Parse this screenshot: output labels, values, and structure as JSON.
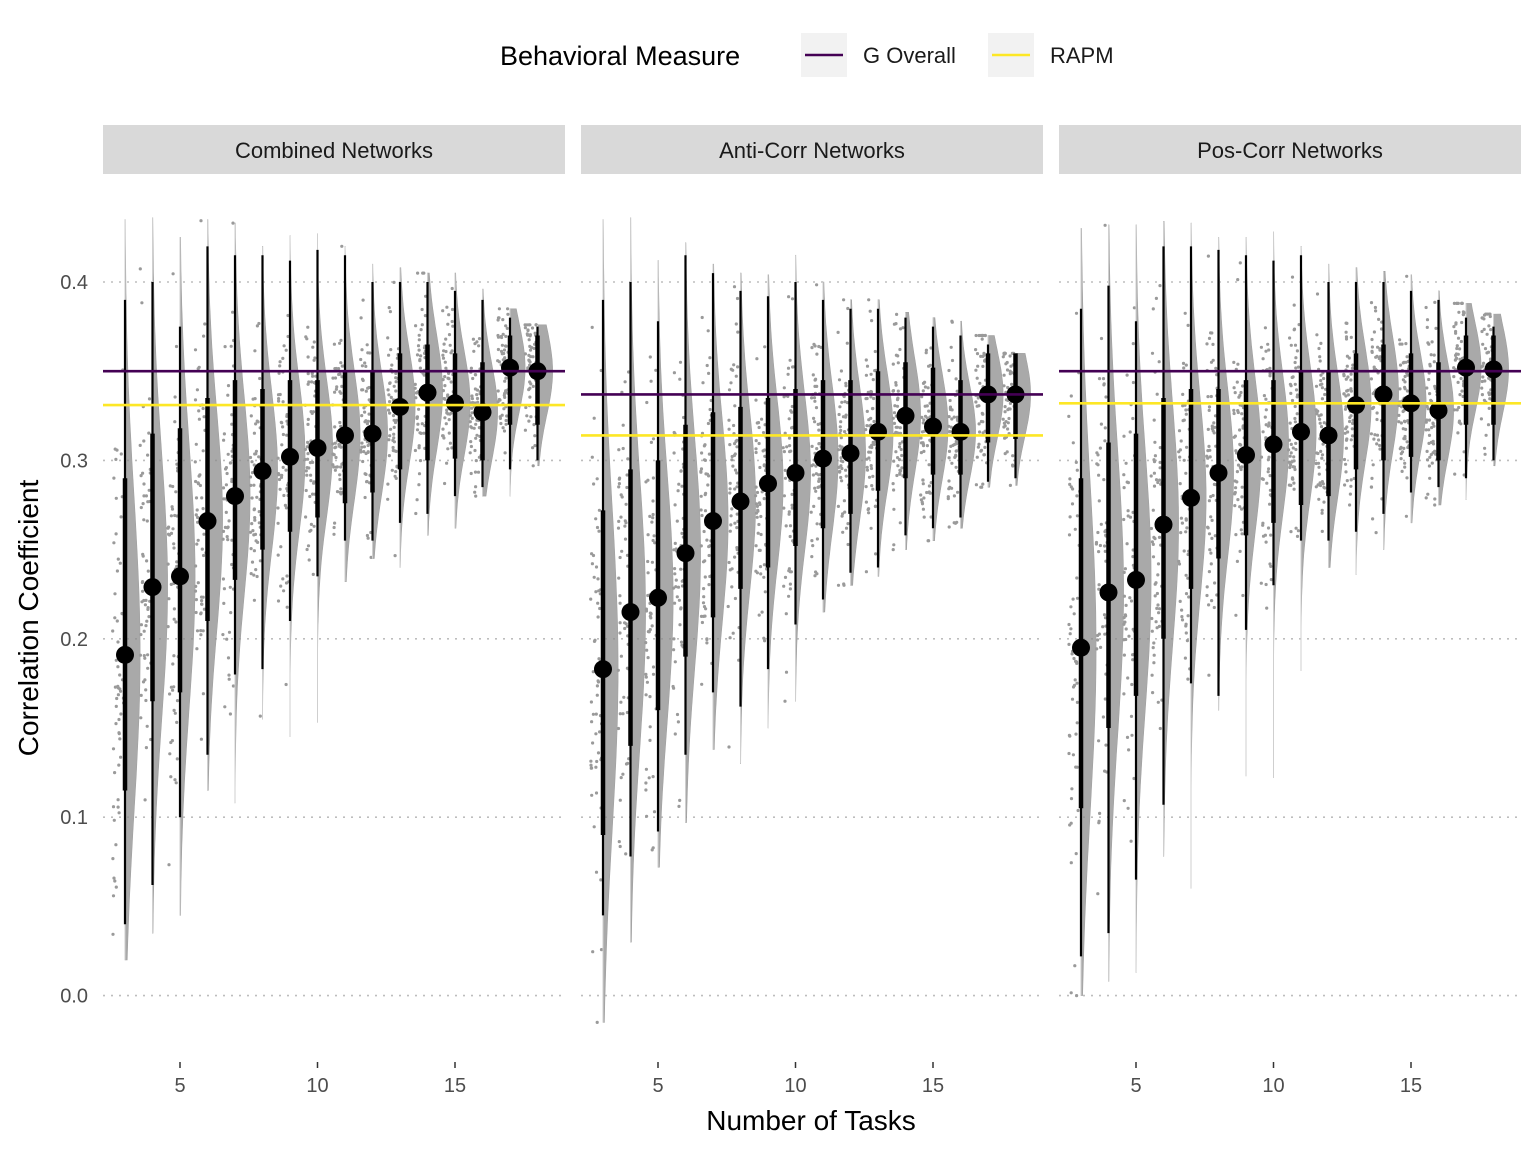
{
  "chart_data": {
    "type": "raincloud",
    "xlabel": "Number of Tasks",
    "ylabel": "Correlation Coefficient",
    "ylim": [
      -0.03,
      0.45
    ],
    "y_ticks": [
      0.0,
      0.1,
      0.2,
      0.3,
      0.4
    ],
    "y_tick_labels": [
      "0.0",
      "0.1",
      "0.2",
      "0.3",
      "0.4"
    ],
    "x_ticks": [
      5,
      10,
      15
    ],
    "x_tick_labels": [
      "5",
      "10",
      "15"
    ],
    "xlim": [
      2.2,
      19.0
    ],
    "grid": "horizontal-dotted",
    "legend": {
      "title": "Behavioral Measure",
      "position": "top",
      "items": [
        {
          "label": "G Overall",
          "color": "#440154"
        },
        {
          "label": "RAPM",
          "color": "#FDE725"
        }
      ]
    },
    "panels": [
      {
        "title": "Combined Networks",
        "reference_lines": {
          "G Overall": 0.35,
          "RAPM": 0.331
        },
        "x": [
          3,
          4,
          5,
          6,
          7,
          8,
          9,
          10,
          11,
          12,
          13,
          14,
          15,
          16,
          17,
          18
        ],
        "median": [
          0.191,
          0.229,
          0.235,
          0.266,
          0.28,
          0.294,
          0.302,
          0.307,
          0.314,
          0.315,
          0.33,
          0.338,
          0.332,
          0.327,
          0.352,
          0.35
        ],
        "range": [
          [
            0.02,
            0.435
          ],
          [
            0.035,
            0.436
          ],
          [
            0.045,
            0.425
          ],
          [
            0.115,
            0.435
          ],
          [
            0.108,
            0.433
          ],
          [
            0.155,
            0.42
          ],
          [
            0.145,
            0.426
          ],
          [
            0.153,
            0.427
          ],
          [
            0.232,
            0.42
          ],
          [
            0.245,
            0.41
          ],
          [
            0.24,
            0.408
          ],
          [
            0.258,
            0.405
          ],
          [
            0.262,
            0.405
          ],
          [
            0.28,
            0.396
          ],
          [
            0.28,
            0.385
          ],
          [
            0.297,
            0.376
          ]
        ],
        "interval_95": [
          [
            0.04,
            0.39
          ],
          [
            0.062,
            0.4
          ],
          [
            0.1,
            0.375
          ],
          [
            0.135,
            0.42
          ],
          [
            0.18,
            0.415
          ],
          [
            0.183,
            0.415
          ],
          [
            0.21,
            0.412
          ],
          [
            0.235,
            0.418
          ],
          [
            0.255,
            0.415
          ],
          [
            0.255,
            0.4
          ],
          [
            0.265,
            0.4
          ],
          [
            0.27,
            0.4
          ],
          [
            0.28,
            0.395
          ],
          [
            0.285,
            0.39
          ],
          [
            0.295,
            0.38
          ],
          [
            0.3,
            0.375
          ]
        ],
        "interval_66": [
          [
            0.115,
            0.29
          ],
          [
            0.165,
            0.315
          ],
          [
            0.17,
            0.318
          ],
          [
            0.21,
            0.335
          ],
          [
            0.233,
            0.345
          ],
          [
            0.25,
            0.34
          ],
          [
            0.26,
            0.345
          ],
          [
            0.268,
            0.345
          ],
          [
            0.276,
            0.35
          ],
          [
            0.282,
            0.35
          ],
          [
            0.295,
            0.36
          ],
          [
            0.3,
            0.365
          ],
          [
            0.301,
            0.36
          ],
          [
            0.3,
            0.355
          ],
          [
            0.32,
            0.37
          ],
          [
            0.32,
            0.37
          ]
        ]
      },
      {
        "title": "Anti-Corr Networks",
        "reference_lines": {
          "G Overall": 0.337,
          "RAPM": 0.314
        },
        "x": [
          3,
          4,
          5,
          6,
          7,
          8,
          9,
          10,
          11,
          12,
          13,
          14,
          15,
          16,
          17,
          18
        ],
        "median": [
          0.183,
          0.215,
          0.223,
          0.248,
          0.266,
          0.277,
          0.287,
          0.293,
          0.301,
          0.304,
          0.316,
          0.325,
          0.319,
          0.316,
          0.337,
          0.337
        ],
        "range": [
          [
            -0.015,
            0.435
          ],
          [
            0.03,
            0.436
          ],
          [
            0.072,
            0.412
          ],
          [
            0.097,
            0.422
          ],
          [
            0.138,
            0.41
          ],
          [
            0.13,
            0.405
          ],
          [
            0.15,
            0.404
          ],
          [
            0.165,
            0.415
          ],
          [
            0.215,
            0.4
          ],
          [
            0.23,
            0.39
          ],
          [
            0.235,
            0.39
          ],
          [
            0.25,
            0.383
          ],
          [
            0.255,
            0.38
          ],
          [
            0.262,
            0.378
          ],
          [
            0.285,
            0.37
          ],
          [
            0.286,
            0.36
          ]
        ],
        "interval_95": [
          [
            0.045,
            0.39
          ],
          [
            0.078,
            0.4
          ],
          [
            0.092,
            0.378
          ],
          [
            0.135,
            0.415
          ],
          [
            0.17,
            0.405
          ],
          [
            0.162,
            0.395
          ],
          [
            0.183,
            0.392
          ],
          [
            0.208,
            0.4
          ],
          [
            0.222,
            0.39
          ],
          [
            0.237,
            0.385
          ],
          [
            0.24,
            0.385
          ],
          [
            0.258,
            0.38
          ],
          [
            0.262,
            0.375
          ],
          [
            0.268,
            0.37
          ],
          [
            0.288,
            0.365
          ],
          [
            0.29,
            0.358
          ]
        ],
        "interval_66": [
          [
            0.09,
            0.272
          ],
          [
            0.14,
            0.295
          ],
          [
            0.16,
            0.3
          ],
          [
            0.19,
            0.32
          ],
          [
            0.212,
            0.327
          ],
          [
            0.228,
            0.33
          ],
          [
            0.24,
            0.335
          ],
          [
            0.252,
            0.34
          ],
          [
            0.262,
            0.345
          ],
          [
            0.27,
            0.345
          ],
          [
            0.283,
            0.35
          ],
          [
            0.29,
            0.355
          ],
          [
            0.292,
            0.352
          ],
          [
            0.292,
            0.345
          ],
          [
            0.31,
            0.36
          ],
          [
            0.312,
            0.36
          ]
        ]
      },
      {
        "title": "Pos-Corr Networks",
        "reference_lines": {
          "G Overall": 0.35,
          "RAPM": 0.332
        },
        "x": [
          3,
          4,
          5,
          6,
          7,
          8,
          9,
          10,
          11,
          12,
          13,
          14,
          15,
          16,
          17,
          18
        ],
        "median": [
          0.195,
          0.226,
          0.233,
          0.264,
          0.279,
          0.293,
          0.303,
          0.309,
          0.316,
          0.314,
          0.331,
          0.337,
          0.332,
          0.328,
          0.352,
          0.351
        ],
        "range": [
          [
            0.0,
            0.43
          ],
          [
            0.008,
            0.432
          ],
          [
            0.013,
            0.432
          ],
          [
            0.078,
            0.434
          ],
          [
            0.06,
            0.433
          ],
          [
            0.16,
            0.425
          ],
          [
            0.123,
            0.425
          ],
          [
            0.122,
            0.428
          ],
          [
            0.182,
            0.42
          ],
          [
            0.24,
            0.41
          ],
          [
            0.236,
            0.408
          ],
          [
            0.25,
            0.406
          ],
          [
            0.265,
            0.404
          ],
          [
            0.275,
            0.395
          ],
          [
            0.278,
            0.388
          ],
          [
            0.297,
            0.382
          ]
        ],
        "interval_95": [
          [
            0.022,
            0.385
          ],
          [
            0.035,
            0.398
          ],
          [
            0.065,
            0.378
          ],
          [
            0.107,
            0.42
          ],
          [
            0.175,
            0.42
          ],
          [
            0.168,
            0.418
          ],
          [
            0.205,
            0.415
          ],
          [
            0.23,
            0.412
          ],
          [
            0.255,
            0.415
          ],
          [
            0.255,
            0.4
          ],
          [
            0.26,
            0.4
          ],
          [
            0.27,
            0.4
          ],
          [
            0.282,
            0.395
          ],
          [
            0.285,
            0.39
          ],
          [
            0.29,
            0.38
          ],
          [
            0.3,
            0.375
          ]
        ],
        "interval_66": [
          [
            0.105,
            0.29
          ],
          [
            0.15,
            0.31
          ],
          [
            0.168,
            0.315
          ],
          [
            0.2,
            0.335
          ],
          [
            0.228,
            0.34
          ],
          [
            0.245,
            0.34
          ],
          [
            0.258,
            0.345
          ],
          [
            0.265,
            0.345
          ],
          [
            0.275,
            0.35
          ],
          [
            0.28,
            0.35
          ],
          [
            0.295,
            0.36
          ],
          [
            0.3,
            0.365
          ],
          [
            0.302,
            0.36
          ],
          [
            0.3,
            0.355
          ],
          [
            0.32,
            0.37
          ],
          [
            0.32,
            0.37
          ]
        ]
      }
    ]
  }
}
